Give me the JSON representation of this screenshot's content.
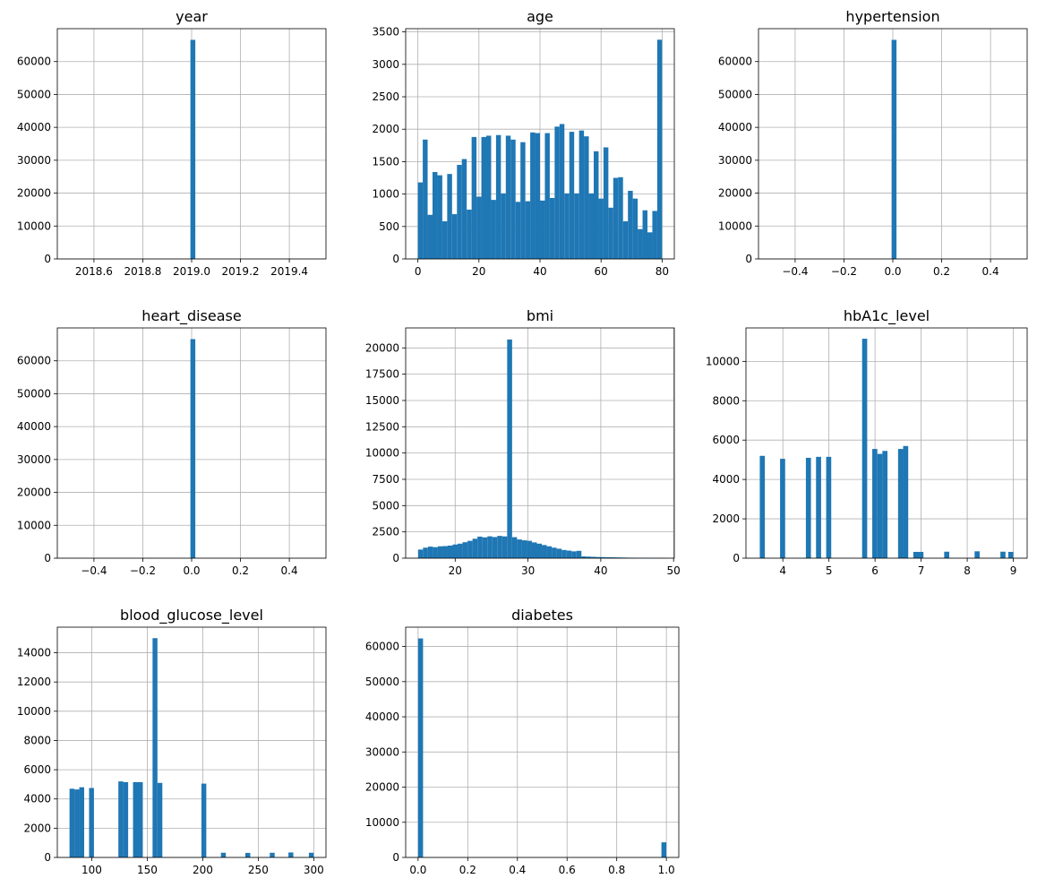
{
  "figure": {
    "background": "#ffffff"
  },
  "chart_data": [
    {
      "type": "bar",
      "title": "year",
      "xlim": [
        2018.45,
        2019.55
      ],
      "ylim": [
        0,
        70000
      ],
      "xticks": [
        2018.6,
        2018.8,
        2019.0,
        2019.2,
        2019.4
      ],
      "xtick_labels": [
        "2018.6",
        "2018.8",
        "2019.0",
        "2019.2",
        "2019.4"
      ],
      "yticks": [
        0,
        10000,
        20000,
        30000,
        40000,
        50000,
        60000
      ],
      "ytick_labels": [
        "0",
        "10000",
        "20000",
        "30000",
        "40000",
        "50000",
        "60000"
      ],
      "grid": true,
      "color": "#1f77b4",
      "bins": [
        {
          "x0": 2018.995,
          "x1": 2019.015,
          "count": 66600
        }
      ]
    },
    {
      "type": "bar",
      "title": "age",
      "xlim": [
        -4,
        84
      ],
      "ylim": [
        0,
        3550
      ],
      "xticks": [
        0,
        20,
        40,
        60,
        80
      ],
      "xtick_labels": [
        "0",
        "20",
        "40",
        "60",
        "80"
      ],
      "yticks": [
        0,
        500,
        1000,
        1500,
        2000,
        2500,
        3000,
        3500
      ],
      "ytick_labels": [
        "0",
        "500",
        "1000",
        "1500",
        "2000",
        "2500",
        "3000",
        "3500"
      ],
      "grid": true,
      "color": "#1f77b4",
      "bins": [
        {
          "x0": 0.0,
          "x1": 1.6,
          "count": 1180
        },
        {
          "x0": 1.6,
          "x1": 3.2,
          "count": 1840
        },
        {
          "x0": 3.2,
          "x1": 4.8,
          "count": 680
        },
        {
          "x0": 4.8,
          "x1": 6.4,
          "count": 1340
        },
        {
          "x0": 6.4,
          "x1": 8.0,
          "count": 1290
        },
        {
          "x0": 8.0,
          "x1": 9.6,
          "count": 580
        },
        {
          "x0": 9.6,
          "x1": 11.2,
          "count": 1310
        },
        {
          "x0": 11.2,
          "x1": 12.8,
          "count": 690
        },
        {
          "x0": 12.8,
          "x1": 14.4,
          "count": 1450
        },
        {
          "x0": 14.4,
          "x1": 16.0,
          "count": 1540
        },
        {
          "x0": 16.0,
          "x1": 17.6,
          "count": 760
        },
        {
          "x0": 17.6,
          "x1": 19.2,
          "count": 1880
        },
        {
          "x0": 19.2,
          "x1": 20.8,
          "count": 960
        },
        {
          "x0": 20.8,
          "x1": 22.4,
          "count": 1880
        },
        {
          "x0": 22.4,
          "x1": 24.0,
          "count": 1900
        },
        {
          "x0": 24.0,
          "x1": 25.6,
          "count": 910
        },
        {
          "x0": 25.6,
          "x1": 27.2,
          "count": 1910
        },
        {
          "x0": 27.2,
          "x1": 28.8,
          "count": 1010
        },
        {
          "x0": 28.8,
          "x1": 30.4,
          "count": 1900
        },
        {
          "x0": 30.4,
          "x1": 32.0,
          "count": 1840
        },
        {
          "x0": 32.0,
          "x1": 33.6,
          "count": 880
        },
        {
          "x0": 33.6,
          "x1": 35.2,
          "count": 1800
        },
        {
          "x0": 35.2,
          "x1": 36.8,
          "count": 890
        },
        {
          "x0": 36.8,
          "x1": 38.4,
          "count": 1950
        },
        {
          "x0": 38.4,
          "x1": 40.0,
          "count": 1940
        },
        {
          "x0": 40.0,
          "x1": 41.6,
          "count": 900
        },
        {
          "x0": 41.6,
          "x1": 43.2,
          "count": 1940
        },
        {
          "x0": 43.2,
          "x1": 44.8,
          "count": 940
        },
        {
          "x0": 44.8,
          "x1": 46.4,
          "count": 2040
        },
        {
          "x0": 46.4,
          "x1": 48.0,
          "count": 2080
        },
        {
          "x0": 48.0,
          "x1": 49.6,
          "count": 1010
        },
        {
          "x0": 49.6,
          "x1": 51.2,
          "count": 1960
        },
        {
          "x0": 51.2,
          "x1": 52.8,
          "count": 1010
        },
        {
          "x0": 52.8,
          "x1": 54.4,
          "count": 1980
        },
        {
          "x0": 54.4,
          "x1": 56.0,
          "count": 1890
        },
        {
          "x0": 56.0,
          "x1": 57.6,
          "count": 1010
        },
        {
          "x0": 57.6,
          "x1": 59.2,
          "count": 1660
        },
        {
          "x0": 59.2,
          "x1": 60.8,
          "count": 930
        },
        {
          "x0": 60.8,
          "x1": 62.4,
          "count": 1720
        },
        {
          "x0": 62.4,
          "x1": 64.0,
          "count": 790
        },
        {
          "x0": 64.0,
          "x1": 65.6,
          "count": 1250
        },
        {
          "x0": 65.6,
          "x1": 67.2,
          "count": 1260
        },
        {
          "x0": 67.2,
          "x1": 68.8,
          "count": 580
        },
        {
          "x0": 68.8,
          "x1": 70.4,
          "count": 1050
        },
        {
          "x0": 70.4,
          "x1": 72.0,
          "count": 930
        },
        {
          "x0": 72.0,
          "x1": 73.6,
          "count": 460
        },
        {
          "x0": 73.6,
          "x1": 75.2,
          "count": 750
        },
        {
          "x0": 75.2,
          "x1": 76.8,
          "count": 410
        },
        {
          "x0": 76.8,
          "x1": 78.4,
          "count": 740
        },
        {
          "x0": 78.4,
          "x1": 80.0,
          "count": 3380
        }
      ]
    },
    {
      "type": "bar",
      "title": "hypertension",
      "xlim": [
        -0.55,
        0.55
      ],
      "ylim": [
        0,
        70000
      ],
      "xticks": [
        -0.4,
        -0.2,
        0.0,
        0.2,
        0.4
      ],
      "xtick_labels": [
        "−0.4",
        "−0.2",
        "0.0",
        "0.2",
        "0.4"
      ],
      "yticks": [
        0,
        10000,
        20000,
        30000,
        40000,
        50000,
        60000
      ],
      "ytick_labels": [
        "0",
        "10000",
        "20000",
        "30000",
        "40000",
        "50000",
        "60000"
      ],
      "grid": true,
      "color": "#1f77b4",
      "bins": [
        {
          "x0": -0.005,
          "x1": 0.015,
          "count": 66600
        }
      ]
    },
    {
      "type": "bar",
      "title": "heart_disease",
      "xlim": [
        -0.55,
        0.55
      ],
      "ylim": [
        0,
        70000
      ],
      "xticks": [
        -0.4,
        -0.2,
        0.0,
        0.2,
        0.4
      ],
      "xtick_labels": [
        "−0.4",
        "−0.2",
        "0.0",
        "0.2",
        "0.4"
      ],
      "yticks": [
        0,
        10000,
        20000,
        30000,
        40000,
        50000,
        60000
      ],
      "ytick_labels": [
        "0",
        "10000",
        "20000",
        "30000",
        "40000",
        "50000",
        "60000"
      ],
      "grid": true,
      "color": "#1f77b4",
      "bins": [
        {
          "x0": -0.005,
          "x1": 0.015,
          "count": 66600
        }
      ]
    },
    {
      "type": "bar",
      "title": "bmi",
      "xlim": [
        13.2,
        50.1
      ],
      "ylim": [
        0,
        21900
      ],
      "xticks": [
        20,
        30,
        40,
        50
      ],
      "xtick_labels": [
        "20",
        "30",
        "40",
        "50"
      ],
      "yticks": [
        0,
        2500,
        5000,
        7500,
        10000,
        12500,
        15000,
        17500,
        20000
      ],
      "ytick_labels": [
        "0",
        "2500",
        "5000",
        "7500",
        "10000",
        "12500",
        "15000",
        "17500",
        "20000"
      ],
      "grid": true,
      "color": "#1f77b4",
      "bins": [
        {
          "x0": 14.9,
          "x1": 15.58,
          "count": 820
        },
        {
          "x0": 15.58,
          "x1": 16.26,
          "count": 1000
        },
        {
          "x0": 16.26,
          "x1": 16.94,
          "count": 1100
        },
        {
          "x0": 16.94,
          "x1": 17.62,
          "count": 1050
        },
        {
          "x0": 17.62,
          "x1": 18.3,
          "count": 1130
        },
        {
          "x0": 18.3,
          "x1": 18.98,
          "count": 1150
        },
        {
          "x0": 18.98,
          "x1": 19.66,
          "count": 1200
        },
        {
          "x0": 19.66,
          "x1": 20.34,
          "count": 1300
        },
        {
          "x0": 20.34,
          "x1": 21.02,
          "count": 1380
        },
        {
          "x0": 21.02,
          "x1": 21.7,
          "count": 1520
        },
        {
          "x0": 21.7,
          "x1": 22.38,
          "count": 1650
        },
        {
          "x0": 22.38,
          "x1": 23.06,
          "count": 1850
        },
        {
          "x0": 23.06,
          "x1": 23.74,
          "count": 2050
        },
        {
          "x0": 23.74,
          "x1": 24.42,
          "count": 1980
        },
        {
          "x0": 24.42,
          "x1": 25.1,
          "count": 2080
        },
        {
          "x0": 25.1,
          "x1": 25.78,
          "count": 2010
        },
        {
          "x0": 25.78,
          "x1": 26.46,
          "count": 2120
        },
        {
          "x0": 26.46,
          "x1": 27.14,
          "count": 2070
        },
        {
          "x0": 27.14,
          "x1": 27.82,
          "count": 20800
        },
        {
          "x0": 27.82,
          "x1": 28.5,
          "count": 2000
        },
        {
          "x0": 28.5,
          "x1": 29.18,
          "count": 1780
        },
        {
          "x0": 29.18,
          "x1": 29.86,
          "count": 1700
        },
        {
          "x0": 29.86,
          "x1": 30.54,
          "count": 1650
        },
        {
          "x0": 30.54,
          "x1": 31.22,
          "count": 1500
        },
        {
          "x0": 31.22,
          "x1": 31.9,
          "count": 1380
        },
        {
          "x0": 31.9,
          "x1": 32.58,
          "count": 1250
        },
        {
          "x0": 32.58,
          "x1": 33.26,
          "count": 1130
        },
        {
          "x0": 33.26,
          "x1": 33.94,
          "count": 1000
        },
        {
          "x0": 33.94,
          "x1": 34.62,
          "count": 900
        },
        {
          "x0": 34.62,
          "x1": 35.3,
          "count": 780
        },
        {
          "x0": 35.3,
          "x1": 35.98,
          "count": 720
        },
        {
          "x0": 35.98,
          "x1": 36.66,
          "count": 650
        },
        {
          "x0": 36.66,
          "x1": 37.34,
          "count": 700
        },
        {
          "x0": 37.34,
          "x1": 38.02,
          "count": 170
        },
        {
          "x0": 38.02,
          "x1": 38.7,
          "count": 150
        },
        {
          "x0": 38.7,
          "x1": 39.38,
          "count": 130
        },
        {
          "x0": 39.38,
          "x1": 40.06,
          "count": 110
        },
        {
          "x0": 40.06,
          "x1": 40.74,
          "count": 100
        },
        {
          "x0": 40.74,
          "x1": 41.42,
          "count": 90
        },
        {
          "x0": 41.42,
          "x1": 42.1,
          "count": 80
        },
        {
          "x0": 42.1,
          "x1": 42.78,
          "count": 70
        },
        {
          "x0": 42.78,
          "x1": 43.46,
          "count": 60
        },
        {
          "x0": 43.46,
          "x1": 44.14,
          "count": 50
        },
        {
          "x0": 44.14,
          "x1": 44.82,
          "count": 45
        },
        {
          "x0": 44.82,
          "x1": 45.5,
          "count": 40
        },
        {
          "x0": 45.5,
          "x1": 46.18,
          "count": 35
        },
        {
          "x0": 46.18,
          "x1": 46.86,
          "count": 30
        },
        {
          "x0": 46.86,
          "x1": 47.54,
          "count": 25
        },
        {
          "x0": 47.54,
          "x1": 48.22,
          "count": 25
        },
        {
          "x0": 48.22,
          "x1": 48.9,
          "count": 20
        }
      ]
    },
    {
      "type": "bar",
      "title": "hbA1c_level",
      "xlim": [
        3.2,
        9.3
      ],
      "ylim": [
        0,
        11700
      ],
      "xticks": [
        4,
        5,
        6,
        7,
        8,
        9
      ],
      "xtick_labels": [
        "4",
        "5",
        "6",
        "7",
        "8",
        "9"
      ],
      "yticks": [
        0,
        2000,
        4000,
        6000,
        8000,
        10000
      ],
      "ytick_labels": [
        "0",
        "2000",
        "4000",
        "6000",
        "8000",
        "10000"
      ],
      "grid": true,
      "color": "#1f77b4",
      "bins": [
        {
          "x0": 3.5,
          "x1": 3.61,
          "count": 5200
        },
        {
          "x0": 3.94,
          "x1": 4.05,
          "count": 5050
        },
        {
          "x0": 4.5,
          "x1": 4.61,
          "count": 5100
        },
        {
          "x0": 4.72,
          "x1": 4.83,
          "count": 5150
        },
        {
          "x0": 4.94,
          "x1": 5.05,
          "count": 5150
        },
        {
          "x0": 5.72,
          "x1": 5.83,
          "count": 11150
        },
        {
          "x0": 5.94,
          "x1": 6.05,
          "count": 5550
        },
        {
          "x0": 6.05,
          "x1": 6.16,
          "count": 5300
        },
        {
          "x0": 6.16,
          "x1": 6.27,
          "count": 5450
        },
        {
          "x0": 6.5,
          "x1": 6.61,
          "count": 5550
        },
        {
          "x0": 6.61,
          "x1": 6.72,
          "count": 5700
        },
        {
          "x0": 6.83,
          "x1": 6.94,
          "count": 320
        },
        {
          "x0": 6.94,
          "x1": 7.05,
          "count": 320
        },
        {
          "x0": 7.5,
          "x1": 7.61,
          "count": 330
        },
        {
          "x0": 8.16,
          "x1": 8.27,
          "count": 350
        },
        {
          "x0": 8.72,
          "x1": 8.83,
          "count": 330
        },
        {
          "x0": 8.89,
          "x1": 9.0,
          "count": 320
        }
      ]
    },
    {
      "type": "bar",
      "title": "blood_glucose_level",
      "xlim": [
        69,
        311
      ],
      "ylim": [
        0,
        15750
      ],
      "xticks": [
        100,
        150,
        200,
        250,
        300
      ],
      "xtick_labels": [
        "100",
        "150",
        "200",
        "250",
        "300"
      ],
      "yticks": [
        0,
        2000,
        4000,
        6000,
        8000,
        10000,
        12000,
        14000
      ],
      "ytick_labels": [
        "0",
        "2000",
        "4000",
        "6000",
        "8000",
        "10000",
        "12000",
        "14000"
      ],
      "grid": true,
      "color": "#1f77b4",
      "bins": [
        {
          "x0": 80.0,
          "x1": 84.4,
          "count": 4700
        },
        {
          "x0": 84.4,
          "x1": 88.8,
          "count": 4650
        },
        {
          "x0": 88.8,
          "x1": 93.2,
          "count": 4800
        },
        {
          "x0": 97.6,
          "x1": 102.0,
          "count": 4750
        },
        {
          "x0": 124.0,
          "x1": 128.4,
          "count": 5200
        },
        {
          "x0": 128.4,
          "x1": 132.8,
          "count": 5150
        },
        {
          "x0": 137.2,
          "x1": 141.6,
          "count": 5150
        },
        {
          "x0": 141.6,
          "x1": 146.0,
          "count": 5150
        },
        {
          "x0": 154.8,
          "x1": 159.2,
          "count": 15000
        },
        {
          "x0": 159.2,
          "x1": 163.6,
          "count": 5100
        },
        {
          "x0": 198.8,
          "x1": 203.2,
          "count": 5050
        },
        {
          "x0": 216.4,
          "x1": 220.8,
          "count": 320
        },
        {
          "x0": 238.4,
          "x1": 242.8,
          "count": 310
        },
        {
          "x0": 260.4,
          "x1": 264.8,
          "count": 320
        },
        {
          "x0": 277.2,
          "x1": 281.6,
          "count": 340
        },
        {
          "x0": 295.6,
          "x1": 300.0,
          "count": 320
        }
      ]
    },
    {
      "type": "bar",
      "title": "diabetes",
      "xlim": [
        -0.05,
        1.05
      ],
      "ylim": [
        0,
        65500
      ],
      "xticks": [
        0.0,
        0.2,
        0.4,
        0.6,
        0.8,
        1.0
      ],
      "xtick_labels": [
        "0.0",
        "0.2",
        "0.4",
        "0.6",
        "0.8",
        "1.0"
      ],
      "yticks": [
        0,
        10000,
        20000,
        30000,
        40000,
        50000,
        60000
      ],
      "ytick_labels": [
        "0",
        "10000",
        "20000",
        "30000",
        "40000",
        "50000",
        "60000"
      ],
      "grid": true,
      "color": "#1f77b4",
      "bins": [
        {
          "x0": 0.0,
          "x1": 0.02,
          "count": 62300
        },
        {
          "x0": 0.98,
          "x1": 1.0,
          "count": 4300
        }
      ]
    }
  ]
}
